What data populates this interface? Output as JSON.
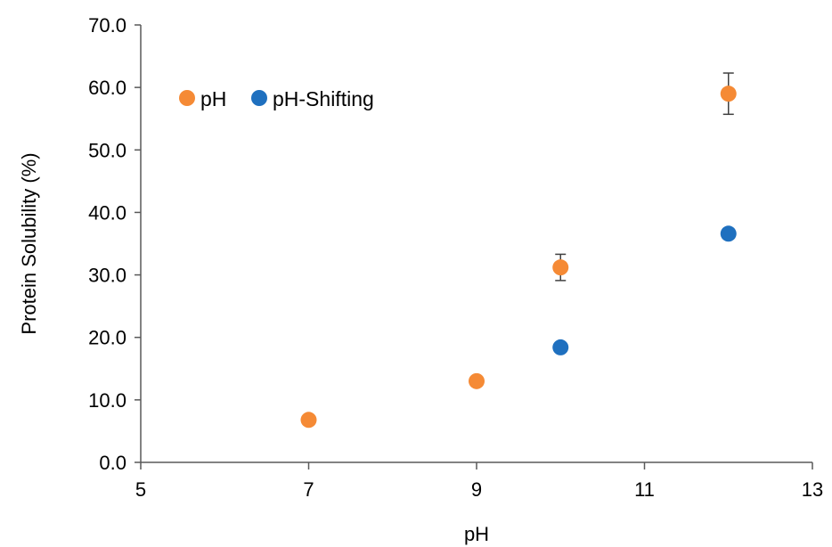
{
  "chart_data": {
    "type": "scatter",
    "xlabel": "pH",
    "ylabel": "Protein Solubility (%)",
    "xlim": [
      5,
      13
    ],
    "ylim": [
      0,
      70
    ],
    "x_ticks": [
      5,
      7,
      9,
      11,
      13
    ],
    "x_tick_labels": [
      "5",
      "7",
      "9",
      "11",
      "13"
    ],
    "y_ticks": [
      0,
      10,
      20,
      30,
      40,
      50,
      60,
      70
    ],
    "y_tick_labels": [
      "0.0",
      "10.0",
      "20.0",
      "30.0",
      "40.0",
      "50.0",
      "60.0",
      "70.0"
    ],
    "grid": false,
    "legend_position": "top-left",
    "series": [
      {
        "name": "pH",
        "color": "#F58A35",
        "points": [
          {
            "x": 7,
            "y": 6.8,
            "err": 0
          },
          {
            "x": 9,
            "y": 13.0,
            "err": 0
          },
          {
            "x": 10,
            "y": 31.2,
            "err": 2.1
          },
          {
            "x": 12,
            "y": 59.0,
            "err": 3.3
          }
        ]
      },
      {
        "name": "pH-Shifting",
        "color": "#1F70BF",
        "points": [
          {
            "x": 10,
            "y": 18.4,
            "err": 0
          },
          {
            "x": 12,
            "y": 36.6,
            "err": 0.7
          }
        ]
      }
    ]
  }
}
